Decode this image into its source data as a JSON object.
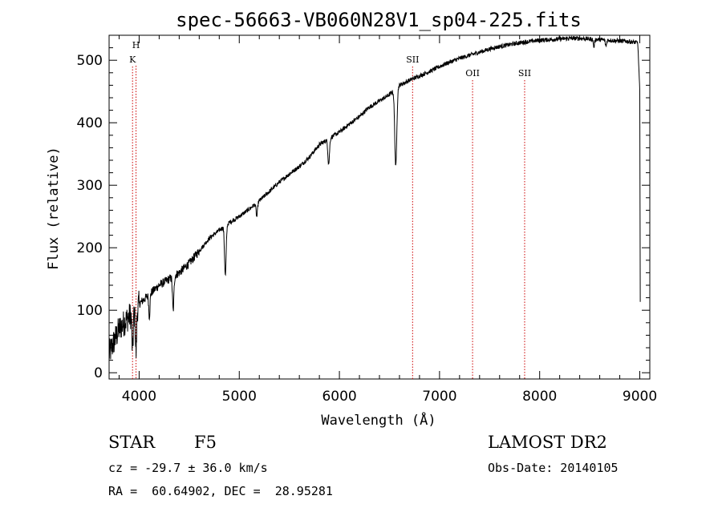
{
  "chart_data": {
    "type": "line",
    "title": "spec-56663-VB060N28V1_sp04-225.fits",
    "xlabel": "Wavelength (Å)",
    "ylabel": "Flux (relative)",
    "xlim": [
      3700,
      9100
    ],
    "ylim": [
      -10,
      540
    ],
    "xticks": [
      4000,
      5000,
      6000,
      7000,
      8000,
      9000
    ],
    "yticks": [
      0,
      100,
      200,
      300,
      400,
      500
    ],
    "continuum": [
      [
        3700,
        30
      ],
      [
        3800,
        70
      ],
      [
        3900,
        90
      ],
      [
        3950,
        95
      ],
      [
        4000,
        110
      ],
      [
        4100,
        125
      ],
      [
        4200,
        140
      ],
      [
        4300,
        150
      ],
      [
        4400,
        160
      ],
      [
        4500,
        175
      ],
      [
        4600,
        195
      ],
      [
        4700,
        215
      ],
      [
        4800,
        228
      ],
      [
        4900,
        240
      ],
      [
        5000,
        250
      ],
      [
        5100,
        262
      ],
      [
        5200,
        275
      ],
      [
        5300,
        290
      ],
      [
        5400,
        305
      ],
      [
        5500,
        318
      ],
      [
        5600,
        330
      ],
      [
        5700,
        345
      ],
      [
        5800,
        365
      ],
      [
        5900,
        375
      ],
      [
        6000,
        385
      ],
      [
        6100,
        398
      ],
      [
        6200,
        410
      ],
      [
        6300,
        425
      ],
      [
        6400,
        435
      ],
      [
        6500,
        445
      ],
      [
        6600,
        460
      ],
      [
        6700,
        468
      ],
      [
        6800,
        475
      ],
      [
        6900,
        482
      ],
      [
        7000,
        490
      ],
      [
        7100,
        497
      ],
      [
        7200,
        503
      ],
      [
        7300,
        508
      ],
      [
        7400,
        513
      ],
      [
        7500,
        518
      ],
      [
        7600,
        522
      ],
      [
        7700,
        525
      ],
      [
        7800,
        528
      ],
      [
        7900,
        530
      ],
      [
        8000,
        532
      ],
      [
        8100,
        533
      ],
      [
        8200,
        534
      ],
      [
        8300,
        535
      ],
      [
        8400,
        535
      ],
      [
        8500,
        534
      ],
      [
        8600,
        533
      ],
      [
        8700,
        532
      ],
      [
        8800,
        531
      ],
      [
        8900,
        530
      ],
      [
        8980,
        528
      ],
      [
        9000,
        450
      ],
      [
        9005,
        110
      ]
    ],
    "absorption_features": [
      {
        "wavelength": 3934,
        "depth": 60,
        "width": 6
      },
      {
        "wavelength": 3969,
        "depth": 70,
        "width": 6
      },
      {
        "wavelength": 4102,
        "depth": 35,
        "width": 6
      },
      {
        "wavelength": 4340,
        "depth": 55,
        "width": 7
      },
      {
        "wavelength": 4861,
        "depth": 80,
        "width": 8
      },
      {
        "wavelength": 5175,
        "depth": 22,
        "width": 7
      },
      {
        "wavelength": 5893,
        "depth": 40,
        "width": 8
      },
      {
        "wavelength": 6563,
        "depth": 125,
        "width": 10
      },
      {
        "wavelength": 8542,
        "depth": 12,
        "width": 6
      },
      {
        "wavelength": 8662,
        "depth": 10,
        "width": 6
      }
    ],
    "line_markers": [
      {
        "label": "H",
        "wavelength": 3969,
        "label_row": 0
      },
      {
        "label": "K",
        "wavelength": 3934,
        "label_row": 1
      },
      {
        "label": "SII",
        "wavelength": 6731,
        "label_row": 1
      },
      {
        "label": "OII",
        "wavelength": 7330,
        "label_row": 2
      },
      {
        "label": "SII",
        "wavelength": 7850,
        "label_row": 2
      }
    ]
  },
  "info": {
    "object_class": "STAR",
    "subclass": "F5",
    "survey": "LAMOST DR2",
    "redshift_text": "cz = -29.7 ± 36.0 km/s",
    "obs_date_text": "Obs-Date: 20140105",
    "coords_text": "RA =  60.64902, DEC =  28.95281"
  },
  "colors": {
    "spectrum": "#000000",
    "marker_line": "#cc0000",
    "axis": "#000000"
  }
}
